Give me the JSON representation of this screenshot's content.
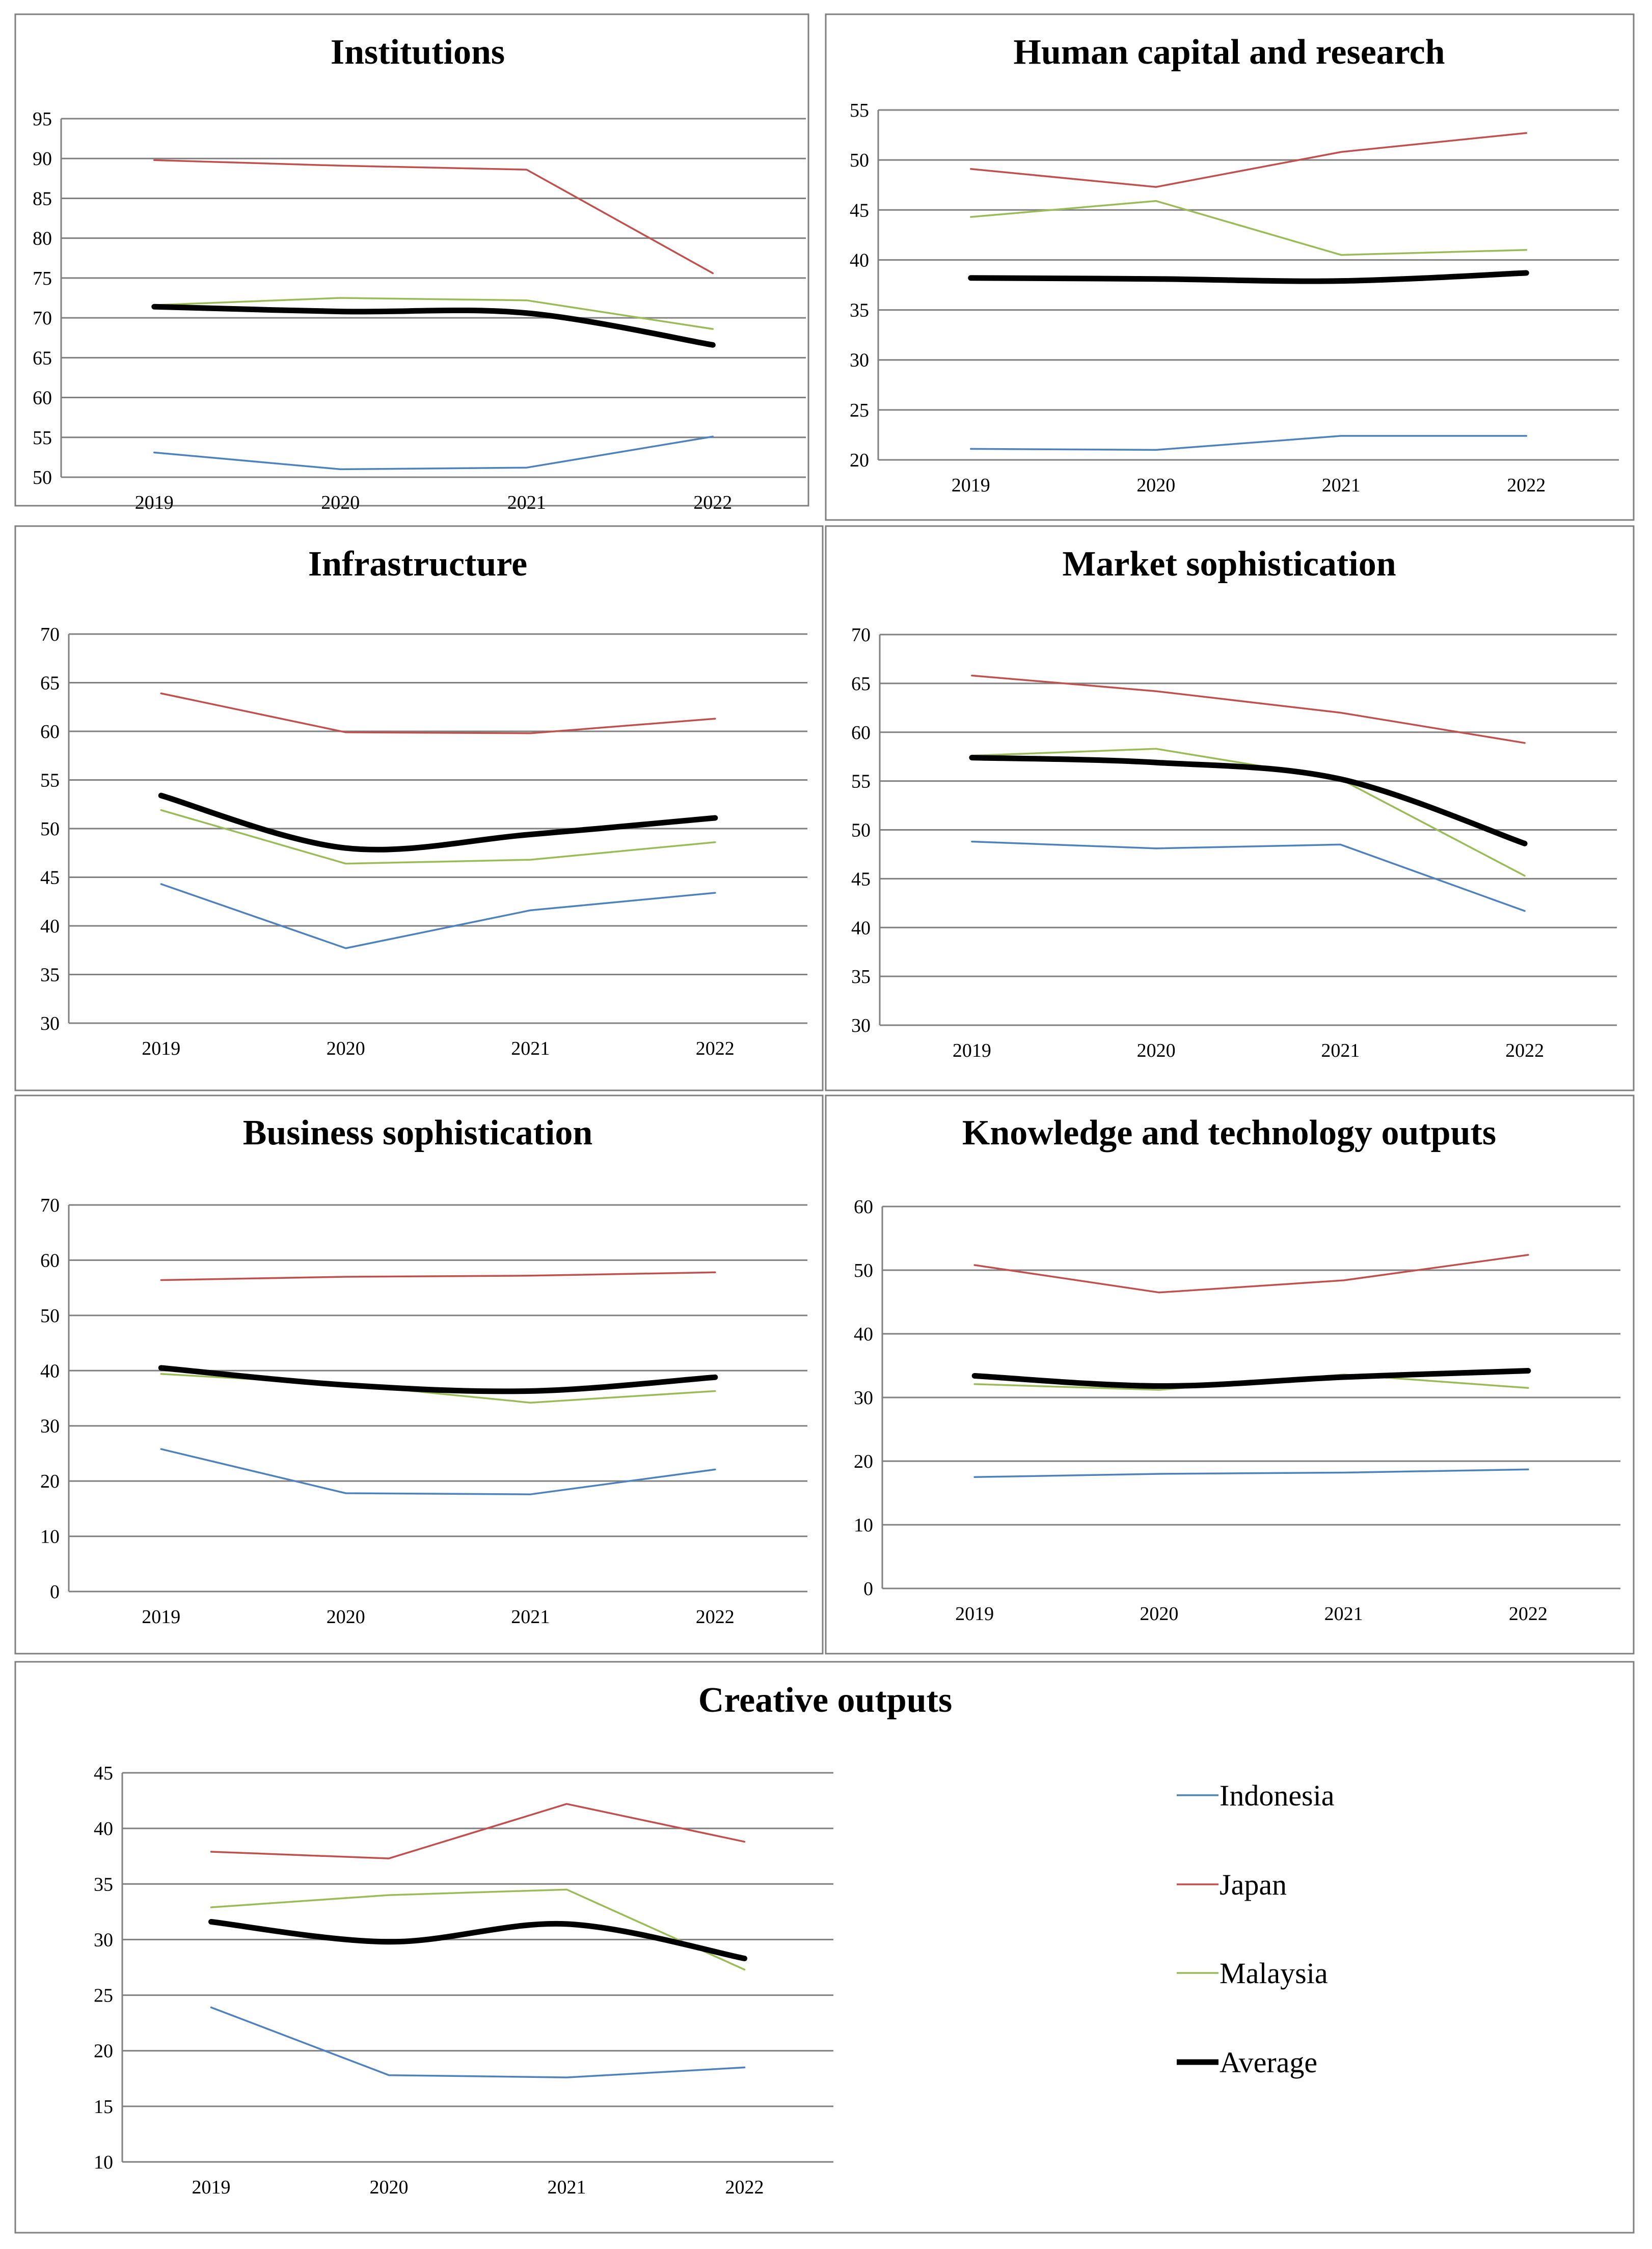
{
  "colors": {
    "Indonesia": "#4f81bd",
    "Japan": "#c0504d",
    "Malaysia": "#9bbb59",
    "Average": "#000000",
    "grid": "#808080",
    "panel_border": "#7f7f7f"
  },
  "legend": {
    "items": [
      {
        "name": "Indonesia",
        "color": "#4f81bd"
      },
      {
        "name": "Japan",
        "color": "#c0504d"
      },
      {
        "name": "Malaysia",
        "color": "#9bbb59"
      },
      {
        "name": "Average",
        "color": "#000000"
      }
    ]
  },
  "chart_data": [
    {
      "type": "line",
      "title": "Institutions",
      "categories": [
        "2019",
        "2020",
        "2021",
        "2022"
      ],
      "ylim": [
        50,
        95
      ],
      "ystep": 5,
      "series": [
        {
          "name": "Indonesia",
          "values": [
            53.1,
            51.0,
            51.2,
            55.1
          ]
        },
        {
          "name": "Japan",
          "values": [
            89.8,
            89.1,
            88.6,
            75.6
          ]
        },
        {
          "name": "Malaysia",
          "values": [
            71.6,
            72.5,
            72.2,
            68.6
          ]
        },
        {
          "name": "Average",
          "values": [
            71.4,
            70.8,
            70.6,
            66.6
          ]
        }
      ]
    },
    {
      "type": "line",
      "title": "Human capital and research",
      "categories": [
        "2019",
        "2020",
        "2021",
        "2022"
      ],
      "ylim": [
        20,
        55
      ],
      "ystep": 5,
      "series": [
        {
          "name": "Indonesia",
          "values": [
            21.1,
            21.0,
            22.4,
            22.4
          ]
        },
        {
          "name": "Japan",
          "values": [
            49.1,
            47.3,
            50.8,
            52.7
          ]
        },
        {
          "name": "Malaysia",
          "values": [
            44.3,
            45.9,
            40.5,
            41.0
          ]
        },
        {
          "name": "Average",
          "values": [
            38.2,
            38.1,
            37.9,
            38.7
          ]
        }
      ]
    },
    {
      "type": "line",
      "title": "Infrastructure",
      "categories": [
        "2019",
        "2020",
        "2021",
        "2022"
      ],
      "ylim": [
        30,
        70
      ],
      "ystep": 5,
      "series": [
        {
          "name": "Indonesia",
          "values": [
            44.3,
            37.7,
            41.6,
            43.4
          ]
        },
        {
          "name": "Japan",
          "values": [
            63.9,
            59.9,
            59.8,
            61.3
          ]
        },
        {
          "name": "Malaysia",
          "values": [
            51.9,
            46.4,
            46.8,
            48.6
          ]
        },
        {
          "name": "Average",
          "values": [
            53.4,
            48.0,
            49.4,
            51.1
          ]
        }
      ]
    },
    {
      "type": "line",
      "title": "Market sophistication",
      "categories": [
        "2019",
        "2020",
        "2021",
        "2022"
      ],
      "ylim": [
        30,
        70
      ],
      "ystep": 5,
      "series": [
        {
          "name": "Indonesia",
          "values": [
            48.8,
            48.1,
            48.5,
            41.7
          ]
        },
        {
          "name": "Japan",
          "values": [
            65.8,
            64.2,
            62.0,
            58.9
          ]
        },
        {
          "name": "Malaysia",
          "values": [
            57.6,
            58.3,
            55.2,
            45.3
          ]
        },
        {
          "name": "Average",
          "values": [
            57.4,
            56.9,
            55.2,
            48.6
          ]
        }
      ]
    },
    {
      "type": "line",
      "title": "Business sophistication",
      "categories": [
        "2019",
        "2020",
        "2021",
        "2022"
      ],
      "ylim": [
        0,
        70
      ],
      "ystep": 10,
      "series": [
        {
          "name": "Indonesia",
          "values": [
            25.8,
            17.8,
            17.6,
            22.1
          ]
        },
        {
          "name": "Japan",
          "values": [
            56.4,
            57.0,
            57.2,
            57.8
          ]
        },
        {
          "name": "Malaysia",
          "values": [
            39.4,
            37.5,
            34.2,
            36.3
          ]
        },
        {
          "name": "Average",
          "values": [
            40.5,
            37.4,
            36.3,
            38.8
          ]
        }
      ]
    },
    {
      "type": "line",
      "title": "Knowledge and technology outputs",
      "categories": [
        "2019",
        "2020",
        "2021",
        "2022"
      ],
      "ylim": [
        0,
        60
      ],
      "ystep": 10,
      "series": [
        {
          "name": "Indonesia",
          "values": [
            17.5,
            18.0,
            18.2,
            18.7
          ]
        },
        {
          "name": "Japan",
          "values": [
            50.8,
            46.5,
            48.4,
            52.4
          ]
        },
        {
          "name": "Malaysia",
          "values": [
            32.1,
            31.2,
            33.6,
            31.5
          ]
        },
        {
          "name": "Average",
          "values": [
            33.4,
            31.8,
            33.2,
            34.2
          ]
        }
      ]
    },
    {
      "type": "line",
      "title": "Creative outputs",
      "categories": [
        "2019",
        "2020",
        "2021",
        "2022"
      ],
      "ylim": [
        10,
        45
      ],
      "ystep": 5,
      "series": [
        {
          "name": "Indonesia",
          "values": [
            23.9,
            17.8,
            17.6,
            18.5
          ]
        },
        {
          "name": "Japan",
          "values": [
            37.9,
            37.3,
            42.2,
            38.8
          ]
        },
        {
          "name": "Malaysia",
          "values": [
            32.9,
            34.0,
            34.5,
            27.3
          ]
        },
        {
          "name": "Average",
          "values": [
            31.6,
            29.8,
            31.4,
            28.3
          ]
        }
      ]
    }
  ]
}
